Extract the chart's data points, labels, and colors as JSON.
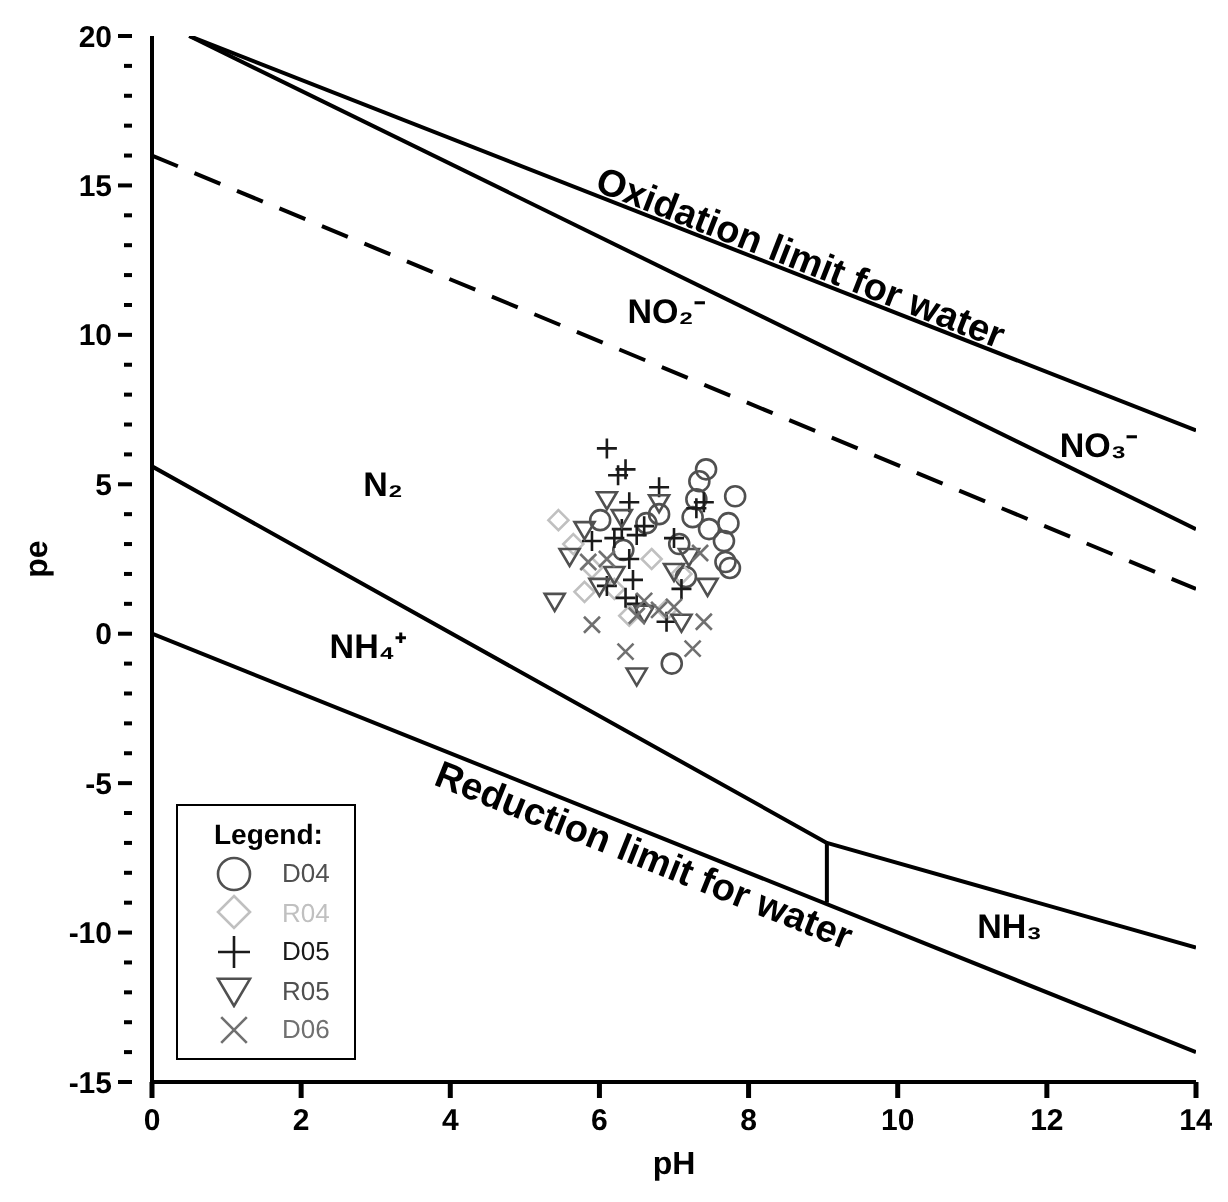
{
  "chart_data": {
    "type": "scatter",
    "xlabel": "pH",
    "ylabel": "pe",
    "xlim": [
      0,
      14
    ],
    "ylim": [
      -15,
      20
    ],
    "xticks": [
      0,
      2,
      4,
      6,
      8,
      10,
      12,
      14
    ],
    "yticks": [
      -15,
      {
        "value": -14,
        "label": null
      },
      {
        "value": -13,
        "label": null
      },
      {
        "value": -12,
        "label": null
      },
      {
        "value": -11,
        "label": null
      },
      -10,
      {
        "value": -9,
        "label": null
      },
      {
        "value": -8,
        "label": null
      },
      {
        "value": -7,
        "label": null
      },
      {
        "value": -6,
        "label": null
      },
      -5,
      {
        "value": -4,
        "label": null
      },
      {
        "value": -3,
        "label": null
      },
      {
        "value": -2,
        "label": null
      },
      {
        "value": -1,
        "label": null
      },
      0,
      {
        "value": 1,
        "label": null
      },
      {
        "value": 2,
        "label": null
      },
      {
        "value": 3,
        "label": null
      },
      {
        "value": 4,
        "label": null
      },
      5,
      {
        "value": 6,
        "label": null
      },
      {
        "value": 7,
        "label": null
      },
      {
        "value": 8,
        "label": null
      },
      {
        "value": 9,
        "label": null
      },
      10,
      {
        "value": 11,
        "label": null
      },
      {
        "value": 12,
        "label": null
      },
      {
        "value": 13,
        "label": null
      },
      {
        "value": 14,
        "label": null
      },
      15,
      {
        "value": 16,
        "label": null
      },
      {
        "value": 17,
        "label": null
      },
      {
        "value": 18,
        "label": null
      },
      {
        "value": 19,
        "label": null
      },
      20
    ],
    "grid": false,
    "legend": "bottom left",
    "legend_title": "Legend:",
    "series": [
      {
        "type": "line",
        "color": "#000000",
        "line_style": "solid",
        "marker": "none",
        "x": [
          0.5,
          14
        ],
        "values": [
          20,
          6.8
        ]
      },
      {
        "type": "line",
        "color": "#000000",
        "line_style": "solid",
        "marker": "none",
        "x": [
          0.5,
          14
        ],
        "values": [
          20,
          3.5
        ]
      },
      {
        "type": "line",
        "color": "#000000",
        "line_style": "dashed",
        "marker": "none",
        "x": [
          0,
          14
        ],
        "values": [
          16,
          1.5
        ]
      },
      {
        "type": "line",
        "color": "#000000",
        "line_style": "solid",
        "marker": "none",
        "x": [
          0,
          9.05,
          14
        ],
        "values": [
          5.6,
          -7,
          -10.5
        ]
      },
      {
        "type": "line",
        "color": "#000000",
        "line_style": "solid",
        "marker": "none",
        "x": [
          9.05,
          9.05
        ],
        "values": [
          -7,
          -9
        ]
      },
      {
        "type": "line",
        "color": "#000000",
        "line_style": "solid",
        "marker": "none",
        "x": [
          0,
          14
        ],
        "values": [
          0,
          -14
        ]
      },
      {
        "name": "D04",
        "color": "#505050",
        "marker": "circle",
        "x": [
          7.43,
          7.34,
          7.82,
          7.73,
          7.67,
          7.69,
          6.97,
          7.25,
          6.01,
          7.07,
          6.63,
          6.32,
          7.47,
          7.16,
          7.75,
          6.8,
          7.3
        ],
        "values": [
          5.5,
          5.1,
          4.6,
          3.7,
          3.1,
          2.4,
          -1.0,
          3.9,
          3.8,
          3.0,
          3.7,
          2.8,
          3.5,
          1.9,
          2.2,
          4.0,
          4.5
        ]
      },
      {
        "name": "R04",
        "color": "#c0c0c0",
        "marker": "diamond",
        "x": [
          5.45,
          5.65,
          5.9,
          6.2,
          6.7,
          7.1,
          6.4,
          5.8,
          6.9
        ],
        "values": [
          3.8,
          3.0,
          2.2,
          1.5,
          2.5,
          2.0,
          0.6,
          1.4,
          0.8
        ]
      },
      {
        "name": "D05",
        "color": "#1a1a1a",
        "marker": "plus",
        "x": [
          6.1,
          6.25,
          6.35,
          6.8,
          6.4,
          6.3,
          6.5,
          6.4,
          6.45,
          6.5,
          6.35,
          7.3,
          7.0,
          7.1,
          6.2,
          5.9,
          6.9,
          7.4,
          6.6,
          6.1
        ],
        "values": [
          6.2,
          5.3,
          5.5,
          4.9,
          4.4,
          3.5,
          3.3,
          2.5,
          1.8,
          1.0,
          1.2,
          4.2,
          3.2,
          1.5,
          3.2,
          3.1,
          0.4,
          4.4,
          3.6,
          1.6
        ]
      },
      {
        "name": "R05",
        "color": "#505050",
        "marker": "triangle-down",
        "x": [
          6.1,
          5.6,
          5.4,
          6.0,
          6.5,
          6.3,
          7.0,
          7.1,
          7.45,
          6.8,
          6.6,
          7.2,
          6.2,
          5.8
        ],
        "values": [
          4.5,
          2.6,
          1.1,
          1.6,
          -1.4,
          3.9,
          2.1,
          0.4,
          1.6,
          4.4,
          0.7,
          2.6,
          2.0,
          3.5
        ]
      },
      {
        "name": "D06",
        "color": "#707070",
        "marker": "cross",
        "x": [
          5.9,
          6.35,
          7.0,
          7.25,
          7.4,
          6.6,
          6.1,
          6.8,
          6.5,
          7.35,
          5.85
        ],
        "values": [
          0.3,
          -0.6,
          0.9,
          -0.5,
          0.4,
          1.1,
          2.5,
          0.8,
          0.6,
          2.7,
          2.4
        ]
      }
    ],
    "annotations": [
      "Oxidation limit for water",
      "NO₂⁻",
      "NO₃⁻",
      "N₂",
      "NH₄⁺",
      "Reduction limit for water",
      "NH₃"
    ]
  }
}
